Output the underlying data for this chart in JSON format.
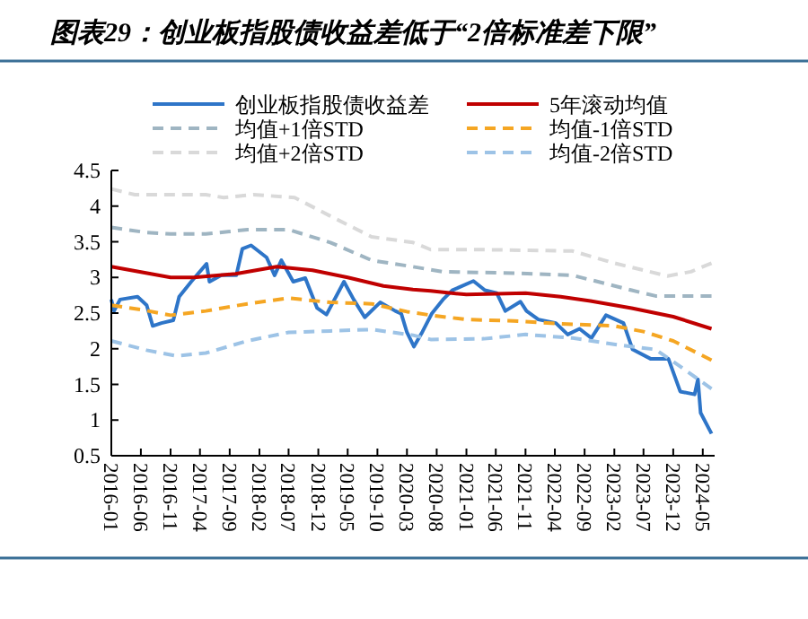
{
  "chart_data": {
    "type": "line",
    "title": "图表29：创业板指股债收益差低于“2倍标准差下限”",
    "xlim": [
      "2016-01",
      "2024-07"
    ],
    "xticks": [
      "2016-01",
      "2016-06",
      "2016-11",
      "2017-04",
      "2017-09",
      "2018-02",
      "2018-07",
      "2018-12",
      "2019-05",
      "2019-10",
      "2020-03",
      "2020-08",
      "2021-01",
      "2021-06",
      "2021-11",
      "2022-04",
      "2022-09",
      "2023-02",
      "2023-07",
      "2023-12",
      "2024-05"
    ],
    "ylim": [
      0.5,
      4.5
    ],
    "yticks": [
      0.5,
      1,
      1.5,
      2,
      2.5,
      3,
      3.5,
      4,
      4.5
    ],
    "grid": false,
    "legend": "top",
    "marker": "none",
    "series": [
      {
        "name": "创业板指股债收益差",
        "color": "#2e75c8",
        "line_style": "solid",
        "x": [
          "2016-01-01",
          "2016-01-15",
          "2016-02-15",
          "2016-05-15",
          "2016-07-01",
          "2016-08-01",
          "2016-09-15",
          "2016-11-15",
          "2016-12-15",
          "2017-02-15",
          "2017-05-05",
          "2017-05-20",
          "2017-07-20",
          "2017-10-05",
          "2017-11-05",
          "2017-12-20",
          "2018-03-10",
          "2018-04-20",
          "2018-05-25",
          "2018-07-25",
          "2018-09-25",
          "2018-11-25",
          "2019-01-12",
          "2019-04-12",
          "2019-06-01",
          "2019-07-28",
          "2019-10-15",
          "2020-01-01",
          "2020-02-01",
          "2020-03-01",
          "2020-04-06",
          "2020-05-20",
          "2020-07-06",
          "2020-09-06",
          "2020-10-20",
          "2021-02-06",
          "2021-04-06",
          "2021-06-06",
          "2021-07-20",
          "2021-10-06",
          "2021-11-06",
          "2022-01-06",
          "2022-04-06",
          "2022-06-06",
          "2022-08-06",
          "2022-10-06",
          "2022-12-20",
          "2023-03-20",
          "2023-05-06",
          "2023-08-06",
          "2023-11-06",
          "2024-01-06",
          "2024-03-20",
          "2024-04-06",
          "2024-04-20",
          "2024-06-15"
        ],
        "values": [
          2.69,
          2.53,
          2.69,
          2.73,
          2.61,
          2.32,
          2.36,
          2.4,
          2.73,
          2.94,
          3.19,
          2.94,
          3.03,
          3.03,
          3.4,
          3.45,
          3.28,
          3.03,
          3.24,
          2.94,
          2.99,
          2.57,
          2.48,
          2.94,
          2.69,
          2.44,
          2.65,
          2.53,
          2.49,
          2.23,
          2.03,
          2.24,
          2.49,
          2.7,
          2.82,
          2.95,
          2.82,
          2.78,
          2.53,
          2.66,
          2.53,
          2.41,
          2.36,
          2.2,
          2.28,
          2.15,
          2.47,
          2.36,
          1.99,
          1.86,
          1.86,
          1.4,
          1.36,
          1.57,
          1.1,
          0.81
        ]
      },
      {
        "name": "5年滚动均值",
        "color": "#c00000",
        "line_style": "solid",
        "x": [
          "2016-01",
          "2016-11",
          "2017-03",
          "2017-10",
          "2018-05",
          "2018-11",
          "2019-05",
          "2019-11",
          "2020-04",
          "2020-07",
          "2021-01",
          "2021-11",
          "2022-05",
          "2022-10",
          "2023-05",
          "2023-12",
          "2024-06-15"
        ],
        "values": [
          3.15,
          3.0,
          3.0,
          3.05,
          3.15,
          3.1,
          3.0,
          2.88,
          2.83,
          2.81,
          2.76,
          2.78,
          2.73,
          2.67,
          2.57,
          2.45,
          2.28
        ]
      },
      {
        "name": "均值+1倍STD",
        "color": "#9fb5c2",
        "line_style": "dashed",
        "x": [
          "2016-01",
          "2016-07",
          "2016-11",
          "2017-05",
          "2017-12",
          "2018-07",
          "2019-02",
          "2019-09",
          "2020-04",
          "2020-09",
          "2021-09",
          "2022-07",
          "2023-05",
          "2023-09",
          "2024-06-15"
        ],
        "values": [
          3.7,
          3.63,
          3.61,
          3.61,
          3.67,
          3.67,
          3.49,
          3.24,
          3.15,
          3.08,
          3.06,
          3.03,
          2.82,
          2.74,
          2.74
        ]
      },
      {
        "name": "均值-1倍STD",
        "color": "#f5a623",
        "line_style": "dashed",
        "x": [
          "2016-01",
          "2016-06",
          "2016-11",
          "2017-05",
          "2017-12",
          "2018-07",
          "2019-02",
          "2019-09",
          "2020-03",
          "2020-07",
          "2021-01",
          "2021-09",
          "2022-05",
          "2023-02",
          "2023-07",
          "2023-12",
          "2024-06-15"
        ],
        "values": [
          2.61,
          2.55,
          2.47,
          2.53,
          2.63,
          2.71,
          2.65,
          2.63,
          2.52,
          2.47,
          2.41,
          2.39,
          2.35,
          2.32,
          2.24,
          2.11,
          1.84
        ]
      },
      {
        "name": "均值+2倍STD",
        "color": "#d9d9d9",
        "line_style": "dashed",
        "x": [
          "2016-01",
          "2016-05",
          "2017-05",
          "2017-08",
          "2018-01",
          "2018-08",
          "2019-02",
          "2019-09",
          "2020-04",
          "2020-07",
          "2021-04",
          "2022-07",
          "2023-02",
          "2023-11",
          "2024-03",
          "2024-06-15"
        ],
        "values": [
          4.24,
          4.16,
          4.16,
          4.12,
          4.16,
          4.12,
          3.86,
          3.57,
          3.49,
          3.39,
          3.39,
          3.37,
          3.2,
          3.02,
          3.08,
          3.2
        ]
      },
      {
        "name": "均值-2倍STD",
        "color": "#9dc3e6",
        "line_style": "dashed",
        "x": [
          "2016-01",
          "2016-07",
          "2016-12",
          "2017-05",
          "2017-12",
          "2018-07",
          "2019-02",
          "2019-09",
          "2020-04",
          "2020-07",
          "2021-04",
          "2021-11",
          "2022-07",
          "2023-03",
          "2023-09",
          "2023-12",
          "2024-06-15"
        ],
        "values": [
          2.11,
          1.98,
          1.9,
          1.94,
          2.11,
          2.23,
          2.25,
          2.27,
          2.19,
          2.13,
          2.14,
          2.2,
          2.15,
          2.05,
          1.99,
          1.82,
          1.44
        ]
      }
    ]
  }
}
